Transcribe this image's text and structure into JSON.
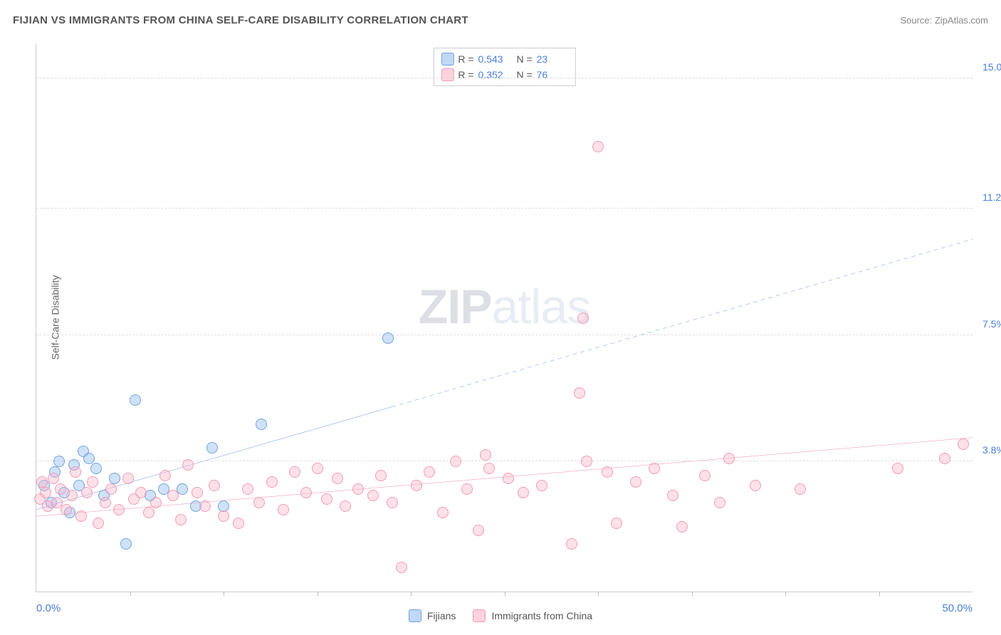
{
  "title": "FIJIAN VS IMMIGRANTS FROM CHINA SELF-CARE DISABILITY CORRELATION CHART",
  "source": "Source: ZipAtlas.com",
  "yaxis_title": "Self-Care Disability",
  "watermark": {
    "bold": "ZIP",
    "rest": "atlas"
  },
  "chart": {
    "type": "scatter",
    "background_color": "#ffffff",
    "grid_color": "#dddddd",
    "xlim": [
      0,
      50
    ],
    "ylim": [
      0,
      16
    ],
    "xtick_positions": [
      5,
      10,
      15,
      20,
      25,
      30,
      35,
      40,
      45
    ],
    "xlabel_min": "0.0%",
    "xlabel_max": "50.0%",
    "yticks": [
      {
        "value": 3.8,
        "label": "3.8%"
      },
      {
        "value": 7.5,
        "label": "7.5%"
      },
      {
        "value": 11.2,
        "label": "11.2%"
      },
      {
        "value": 15.0,
        "label": "15.0%"
      }
    ],
    "axis_label_color": "#4a7fd8",
    "label_fontsize": 14,
    "title_fontsize": 15,
    "series": [
      {
        "key": "s1",
        "name": "Fijians",
        "marker_fill": "rgba(150,190,240,0.45)",
        "marker_stroke": "#6fa3e0",
        "marker_size": 16,
        "R": "0.543",
        "N": "23",
        "trend": {
          "x1": 0,
          "y1": 2.4,
          "x2": 19,
          "y2": 5.4,
          "x2_ext": 50,
          "y2_ext": 10.3,
          "color": "#3366cc",
          "width": 2,
          "dash_ext": "6 5"
        },
        "points": [
          [
            0.4,
            3.1
          ],
          [
            0.8,
            2.6
          ],
          [
            1.0,
            3.5
          ],
          [
            1.2,
            3.8
          ],
          [
            1.5,
            2.9
          ],
          [
            1.8,
            2.3
          ],
          [
            2.0,
            3.7
          ],
          [
            2.3,
            3.1
          ],
          [
            2.5,
            4.1
          ],
          [
            2.8,
            3.9
          ],
          [
            3.2,
            3.6
          ],
          [
            3.6,
            2.8
          ],
          [
            4.2,
            3.3
          ],
          [
            4.8,
            1.4
          ],
          [
            5.3,
            5.6
          ],
          [
            6.1,
            2.8
          ],
          [
            6.8,
            3.0
          ],
          [
            7.8,
            3.0
          ],
          [
            8.5,
            2.5
          ],
          [
            9.4,
            4.2
          ],
          [
            10.0,
            2.5
          ],
          [
            12.0,
            4.9
          ],
          [
            18.8,
            7.4
          ]
        ]
      },
      {
        "key": "s2",
        "name": "Immigrants from China",
        "marker_fill": "rgba(250,180,200,0.40)",
        "marker_stroke": "#f19bb4",
        "marker_size": 16,
        "R": "0.352",
        "N": "76",
        "trend": {
          "x1": 0,
          "y1": 2.2,
          "x2": 50,
          "y2": 4.5,
          "x2_ext": 50,
          "y2_ext": 4.5,
          "color": "#e85b8a",
          "width": 2,
          "dash_ext": ""
        },
        "points": [
          [
            0.2,
            2.7
          ],
          [
            0.3,
            3.2
          ],
          [
            0.5,
            2.9
          ],
          [
            0.6,
            2.5
          ],
          [
            0.9,
            3.3
          ],
          [
            1.1,
            2.6
          ],
          [
            1.3,
            3.0
          ],
          [
            1.6,
            2.4
          ],
          [
            1.9,
            2.8
          ],
          [
            2.1,
            3.5
          ],
          [
            2.4,
            2.2
          ],
          [
            2.7,
            2.9
          ],
          [
            3.0,
            3.2
          ],
          [
            3.3,
            2.0
          ],
          [
            3.7,
            2.6
          ],
          [
            4.0,
            3.0
          ],
          [
            4.4,
            2.4
          ],
          [
            4.9,
            3.3
          ],
          [
            5.2,
            2.7
          ],
          [
            5.6,
            2.9
          ],
          [
            6.0,
            2.3
          ],
          [
            6.4,
            2.6
          ],
          [
            6.9,
            3.4
          ],
          [
            7.3,
            2.8
          ],
          [
            7.7,
            2.1
          ],
          [
            8.1,
            3.7
          ],
          [
            8.6,
            2.9
          ],
          [
            9.0,
            2.5
          ],
          [
            9.5,
            3.1
          ],
          [
            10.0,
            2.2
          ],
          [
            10.8,
            2.0
          ],
          [
            11.3,
            3.0
          ],
          [
            11.9,
            2.6
          ],
          [
            12.6,
            3.2
          ],
          [
            13.2,
            2.4
          ],
          [
            13.8,
            3.5
          ],
          [
            14.4,
            2.9
          ],
          [
            15.0,
            3.6
          ],
          [
            15.5,
            2.7
          ],
          [
            16.1,
            3.3
          ],
          [
            16.5,
            2.5
          ],
          [
            17.2,
            3.0
          ],
          [
            18.0,
            2.8
          ],
          [
            18.4,
            3.4
          ],
          [
            19.0,
            2.6
          ],
          [
            19.5,
            0.7
          ],
          [
            20.3,
            3.1
          ],
          [
            21.0,
            3.5
          ],
          [
            21.7,
            2.3
          ],
          [
            22.4,
            3.8
          ],
          [
            23.0,
            3.0
          ],
          [
            23.6,
            1.8
          ],
          [
            24.0,
            4.0
          ],
          [
            24.2,
            3.6
          ],
          [
            25.2,
            3.3
          ],
          [
            26.0,
            2.9
          ],
          [
            27.0,
            3.1
          ],
          [
            28.6,
            1.4
          ],
          [
            29.0,
            5.8
          ],
          [
            29.2,
            8.0
          ],
          [
            29.4,
            3.8
          ],
          [
            30.0,
            13.0
          ],
          [
            30.5,
            3.5
          ],
          [
            31.0,
            2.0
          ],
          [
            32.0,
            3.2
          ],
          [
            33.0,
            3.6
          ],
          [
            34.0,
            2.8
          ],
          [
            34.5,
            1.9
          ],
          [
            35.7,
            3.4
          ],
          [
            36.5,
            2.6
          ],
          [
            37.0,
            3.9
          ],
          [
            38.4,
            3.1
          ],
          [
            40.8,
            3.0
          ],
          [
            46.0,
            3.6
          ],
          [
            48.5,
            3.9
          ],
          [
            49.5,
            4.3
          ]
        ]
      }
    ]
  },
  "legend": {
    "items": [
      {
        "key": "s1",
        "label": "Fijians"
      },
      {
        "key": "s2",
        "label": "Immigrants from China"
      }
    ]
  }
}
